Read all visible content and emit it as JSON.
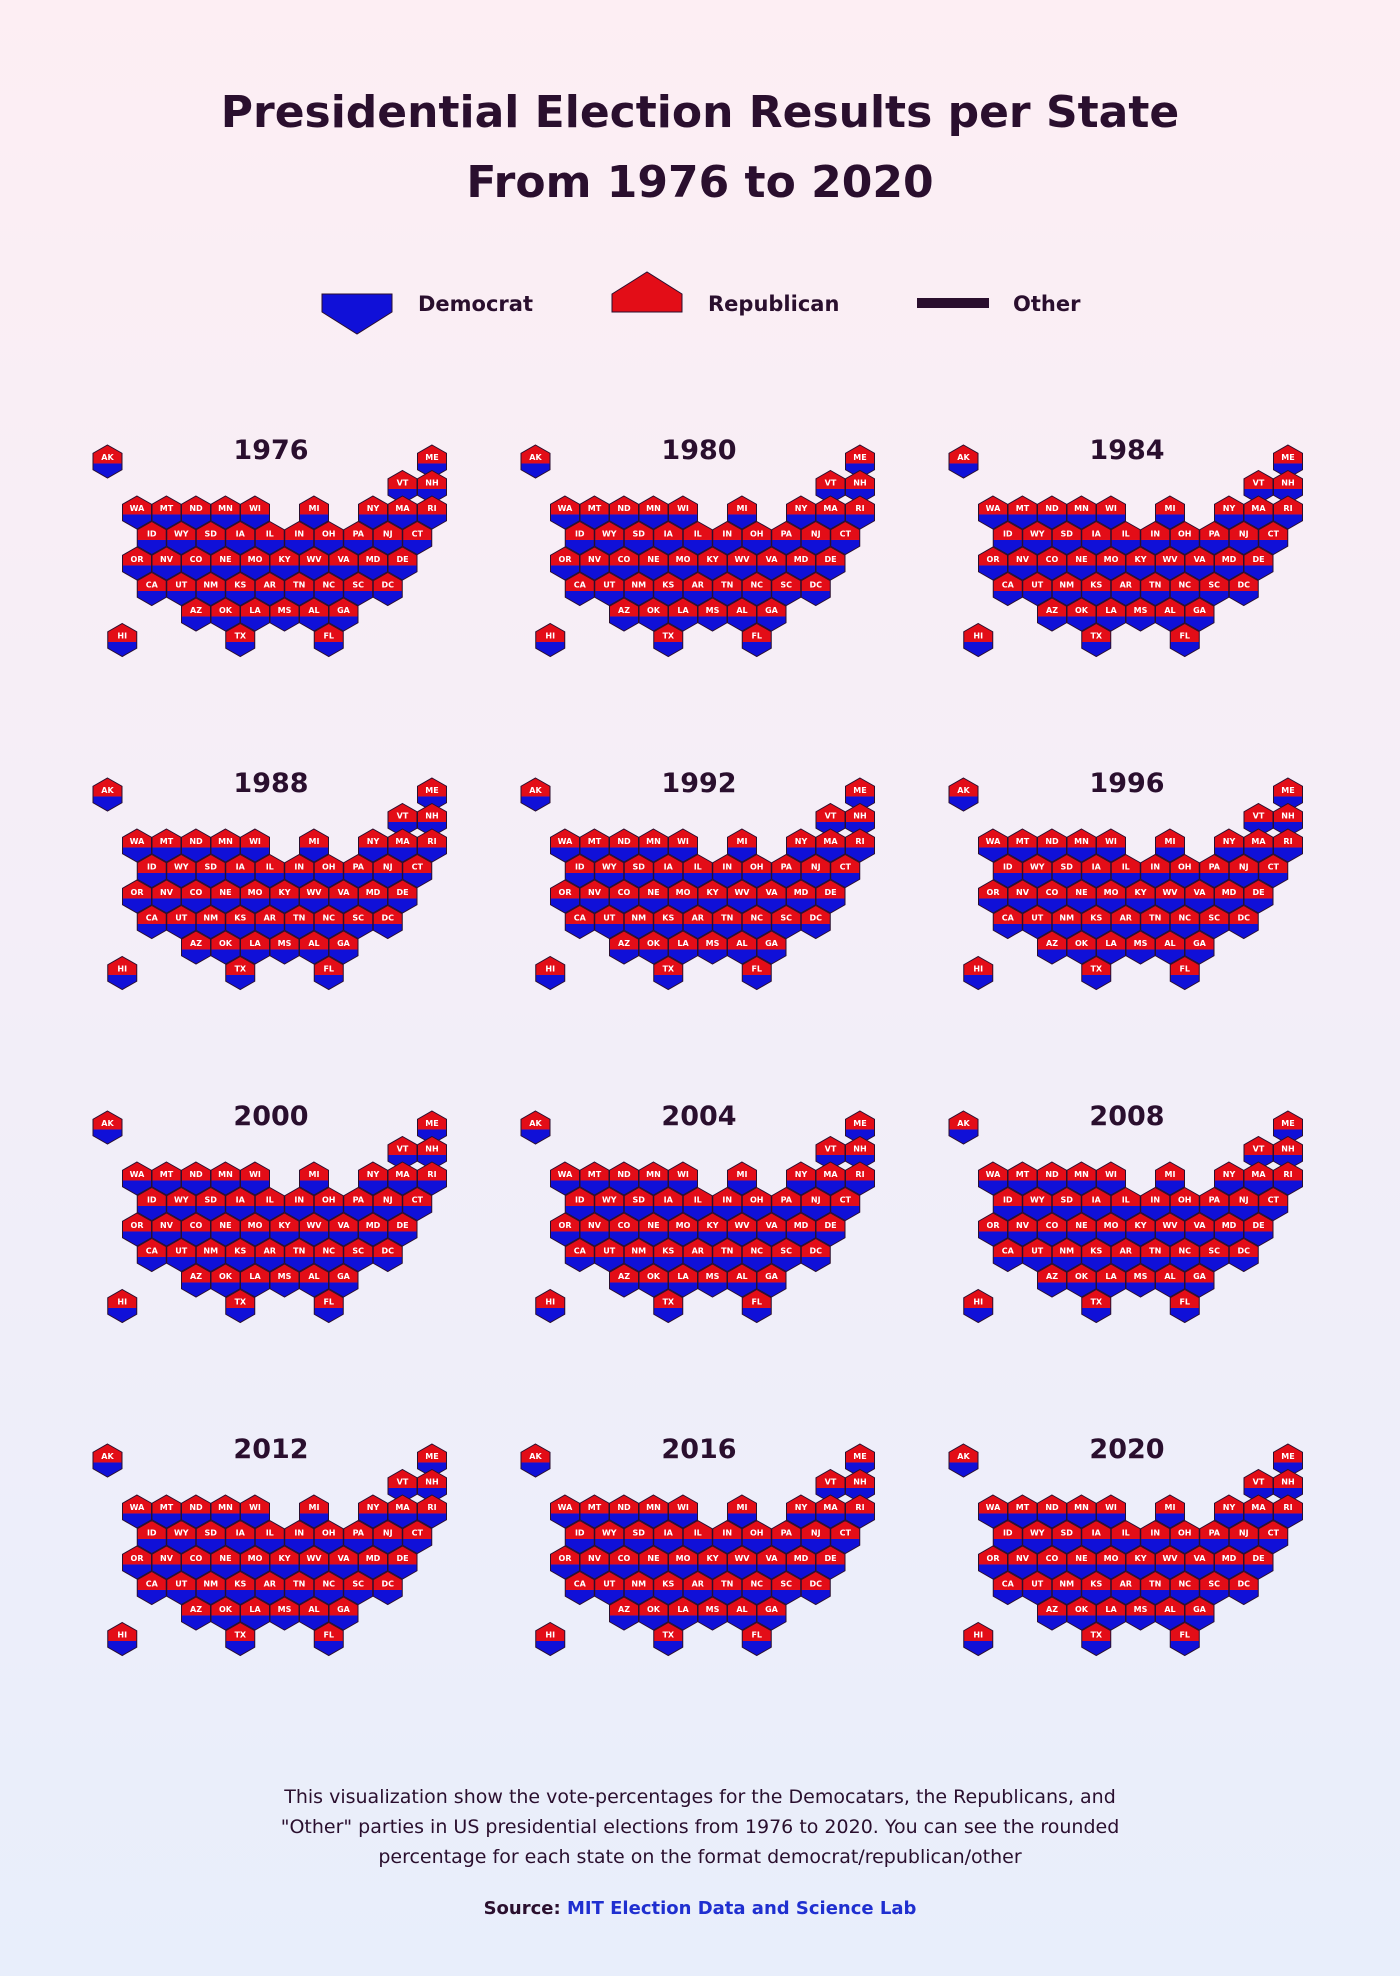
{
  "title": {
    "line1": "Presidential Election Results per State",
    "line2": "From 1976 to 2020"
  },
  "legend": {
    "democrat": "Democrat",
    "republican": "Republican",
    "other": "Other"
  },
  "colors": {
    "democrat": "#1010d8",
    "republican": "#e30d17",
    "other": "#2a0f2e",
    "text": "#2a0f2e"
  },
  "caption": "This visualization show the vote-percentages for the Democatars, the Republicans, and \"Other\" parties in US presidential elections from 1976 to 2020. You can see the rounded percentage for each state on the format democrat/republican/other",
  "source": {
    "label": "Source:",
    "text": "MIT Election Data and Science Lab"
  },
  "chart_data": {
    "type": "heatmap",
    "years": [
      "1976",
      "1980",
      "1984",
      "1988",
      "1992",
      "1996",
      "2000",
      "2004",
      "2008",
      "2012",
      "2016",
      "2020"
    ],
    "states": [
      "AK",
      "ME",
      "VT",
      "NH",
      "WA",
      "MT",
      "ND",
      "MN",
      "WI",
      "MI",
      "NY",
      "MA",
      "RI",
      "ID",
      "WY",
      "SD",
      "IA",
      "IL",
      "IN",
      "OH",
      "PA",
      "NJ",
      "CT",
      "OR",
      "NV",
      "CO",
      "NE",
      "MO",
      "KY",
      "WV",
      "VA",
      "MD",
      "DE",
      "CA",
      "UT",
      "NM",
      "KS",
      "AR",
      "TN",
      "NC",
      "SC",
      "DC",
      "AZ",
      "OK",
      "LA",
      "MS",
      "AL",
      "GA",
      "HI",
      "TX",
      "FL"
    ],
    "winners": {
      "1976": [
        "R",
        "R",
        "R",
        "R",
        "R",
        "R",
        "R",
        "D",
        "D",
        "R",
        "D",
        "D",
        "D",
        "R",
        "R",
        "R",
        "R",
        "R",
        "R",
        "D",
        "D",
        "R",
        "R",
        "R",
        "R",
        "R",
        "R",
        "D",
        "D",
        "D",
        "R",
        "D",
        "D",
        "R",
        "R",
        "R",
        "R",
        "D",
        "D",
        "D",
        "D",
        "D",
        "R",
        "R",
        "D",
        "D",
        "D",
        "D",
        "D",
        "D",
        "D"
      ],
      "1980": [
        "R",
        "R",
        "R",
        "R",
        "R",
        "R",
        "R",
        "D",
        "R",
        "R",
        "R",
        "R",
        "D",
        "R",
        "R",
        "R",
        "R",
        "R",
        "R",
        "R",
        "R",
        "R",
        "R",
        "R",
        "R",
        "R",
        "R",
        "R",
        "R",
        "D",
        "R",
        "D",
        "R",
        "R",
        "R",
        "R",
        "R",
        "R",
        "R",
        "R",
        "R",
        "D",
        "R",
        "R",
        "R",
        "R",
        "R",
        "D",
        "D",
        "R",
        "R"
      ],
      "1984": [
        "R",
        "R",
        "R",
        "R",
        "R",
        "R",
        "R",
        "D",
        "R",
        "R",
        "R",
        "R",
        "R",
        "R",
        "R",
        "R",
        "R",
        "R",
        "R",
        "R",
        "R",
        "R",
        "R",
        "R",
        "R",
        "R",
        "R",
        "R",
        "R",
        "R",
        "R",
        "R",
        "R",
        "R",
        "R",
        "R",
        "R",
        "R",
        "R",
        "R",
        "R",
        "D",
        "R",
        "R",
        "R",
        "R",
        "R",
        "R",
        "R",
        "R",
        "R"
      ],
      "1988": [
        "R",
        "R",
        "R",
        "R",
        "D",
        "R",
        "R",
        "D",
        "D",
        "R",
        "D",
        "D",
        "D",
        "R",
        "R",
        "R",
        "D",
        "R",
        "R",
        "R",
        "R",
        "R",
        "R",
        "D",
        "R",
        "R",
        "R",
        "R",
        "R",
        "D",
        "R",
        "R",
        "R",
        "R",
        "R",
        "R",
        "R",
        "R",
        "R",
        "R",
        "R",
        "D",
        "R",
        "R",
        "R",
        "R",
        "R",
        "R",
        "D",
        "R",
        "R"
      ],
      "1992": [
        "R",
        "D",
        "D",
        "D",
        "D",
        "D",
        "R",
        "D",
        "D",
        "D",
        "D",
        "D",
        "D",
        "R",
        "R",
        "R",
        "D",
        "D",
        "R",
        "D",
        "D",
        "D",
        "D",
        "D",
        "D",
        "D",
        "R",
        "D",
        "D",
        "D",
        "R",
        "D",
        "D",
        "D",
        "R",
        "D",
        "R",
        "D",
        "D",
        "R",
        "R",
        "D",
        "R",
        "R",
        "D",
        "R",
        "R",
        "D",
        "D",
        "R",
        "R"
      ],
      "1996": [
        "R",
        "D",
        "D",
        "D",
        "D",
        "R",
        "R",
        "D",
        "D",
        "D",
        "D",
        "D",
        "D",
        "R",
        "R",
        "R",
        "D",
        "D",
        "R",
        "D",
        "D",
        "D",
        "D",
        "D",
        "D",
        "R",
        "R",
        "D",
        "D",
        "D",
        "R",
        "D",
        "D",
        "D",
        "R",
        "D",
        "R",
        "D",
        "D",
        "R",
        "R",
        "D",
        "D",
        "R",
        "D",
        "R",
        "R",
        "R",
        "D",
        "R",
        "D"
      ],
      "2000": [
        "R",
        "D",
        "D",
        "R",
        "D",
        "R",
        "R",
        "D",
        "D",
        "D",
        "D",
        "D",
        "D",
        "R",
        "R",
        "R",
        "D",
        "D",
        "R",
        "R",
        "D",
        "D",
        "D",
        "D",
        "R",
        "R",
        "R",
        "R",
        "R",
        "R",
        "R",
        "D",
        "D",
        "D",
        "R",
        "D",
        "R",
        "R",
        "R",
        "R",
        "R",
        "D",
        "R",
        "R",
        "R",
        "R",
        "R",
        "R",
        "D",
        "R",
        "R"
      ],
      "2004": [
        "R",
        "D",
        "D",
        "D",
        "D",
        "R",
        "R",
        "D",
        "D",
        "D",
        "D",
        "D",
        "D",
        "R",
        "R",
        "R",
        "R",
        "D",
        "R",
        "R",
        "D",
        "D",
        "D",
        "D",
        "R",
        "R",
        "R",
        "R",
        "R",
        "R",
        "R",
        "D",
        "D",
        "D",
        "R",
        "R",
        "R",
        "R",
        "R",
        "R",
        "R",
        "D",
        "R",
        "R",
        "R",
        "R",
        "R",
        "R",
        "D",
        "R",
        "R"
      ],
      "2008": [
        "R",
        "D",
        "D",
        "D",
        "D",
        "R",
        "R",
        "D",
        "D",
        "D",
        "D",
        "D",
        "D",
        "R",
        "R",
        "R",
        "D",
        "D",
        "D",
        "D",
        "D",
        "D",
        "D",
        "D",
        "D",
        "D",
        "R",
        "R",
        "R",
        "R",
        "D",
        "D",
        "D",
        "D",
        "R",
        "D",
        "R",
        "R",
        "R",
        "D",
        "R",
        "D",
        "R",
        "R",
        "R",
        "R",
        "R",
        "R",
        "D",
        "R",
        "D"
      ],
      "2012": [
        "R",
        "D",
        "D",
        "D",
        "D",
        "R",
        "R",
        "D",
        "D",
        "D",
        "D",
        "D",
        "D",
        "R",
        "R",
        "R",
        "D",
        "D",
        "R",
        "D",
        "D",
        "D",
        "D",
        "D",
        "D",
        "D",
        "R",
        "R",
        "R",
        "R",
        "D",
        "D",
        "D",
        "D",
        "R",
        "D",
        "R",
        "R",
        "R",
        "R",
        "R",
        "D",
        "R",
        "R",
        "R",
        "R",
        "R",
        "R",
        "D",
        "R",
        "D"
      ],
      "2016": [
        "R",
        "D",
        "D",
        "D",
        "D",
        "R",
        "R",
        "D",
        "R",
        "R",
        "D",
        "D",
        "D",
        "R",
        "R",
        "R",
        "R",
        "D",
        "R",
        "R",
        "R",
        "D",
        "D",
        "D",
        "D",
        "D",
        "R",
        "R",
        "R",
        "R",
        "D",
        "D",
        "D",
        "D",
        "R",
        "D",
        "R",
        "R",
        "R",
        "R",
        "R",
        "D",
        "R",
        "R",
        "R",
        "R",
        "R",
        "R",
        "D",
        "R",
        "R"
      ],
      "2020": [
        "R",
        "D",
        "D",
        "D",
        "D",
        "R",
        "R",
        "D",
        "D",
        "D",
        "D",
        "D",
        "D",
        "R",
        "R",
        "R",
        "R",
        "D",
        "R",
        "R",
        "D",
        "D",
        "D",
        "D",
        "D",
        "D",
        "R",
        "R",
        "R",
        "R",
        "D",
        "D",
        "D",
        "D",
        "R",
        "D",
        "R",
        "R",
        "R",
        "R",
        "R",
        "D",
        "D",
        "R",
        "R",
        "R",
        "R",
        "D",
        "D",
        "R",
        "R"
      ]
    }
  }
}
